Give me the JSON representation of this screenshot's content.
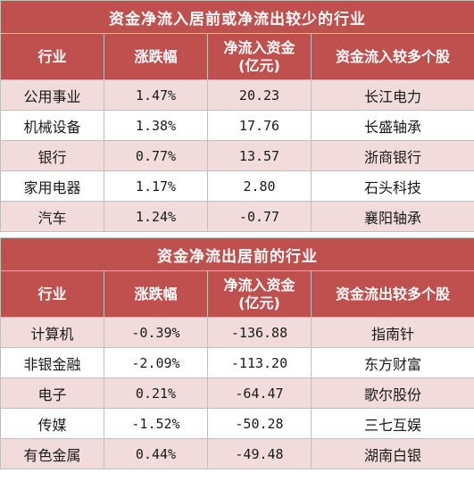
{
  "inflow_table": {
    "title": "资金净流入居前或净流出较少的行业",
    "headers": [
      "行业",
      "涨跌幅",
      "净流入资金\n(亿元)",
      "资金流入较多个股"
    ],
    "rows": [
      {
        "industry": "公用事业",
        "change": "1.47%",
        "net_flow": "20.23",
        "stock": "长江电力"
      },
      {
        "industry": "机械设备",
        "change": "1.38%",
        "net_flow": "17.76",
        "stock": "长盛轴承"
      },
      {
        "industry": "银行",
        "change": "0.77%",
        "net_flow": "13.57",
        "stock": "浙商银行"
      },
      {
        "industry": "家用电器",
        "change": "1.17%",
        "net_flow": "2.80",
        "stock": "石头科技"
      },
      {
        "industry": "汽车",
        "change": "1.24%",
        "net_flow": "-0.77",
        "stock": "襄阳轴承"
      }
    ]
  },
  "outflow_table": {
    "title": "资金净流出居前的行业",
    "headers": [
      "行业",
      "涨跌幅",
      "净流入资金\n(亿元)",
      "资金流出较多个股"
    ],
    "rows": [
      {
        "industry": "计算机",
        "change": "-0.39%",
        "net_flow": "-136.88",
        "stock": "指南针"
      },
      {
        "industry": "非银金融",
        "change": "-2.09%",
        "net_flow": "-113.20",
        "stock": "东方财富"
      },
      {
        "industry": "电子",
        "change": "0.21%",
        "net_flow": "-64.47",
        "stock": "歌尔股份"
      },
      {
        "industry": "传媒",
        "change": "-1.52%",
        "net_flow": "-50.28",
        "stock": "三七互娱"
      },
      {
        "industry": "有色金属",
        "change": "0.44%",
        "net_flow": "-49.48",
        "stock": "湖南白银"
      }
    ]
  }
}
